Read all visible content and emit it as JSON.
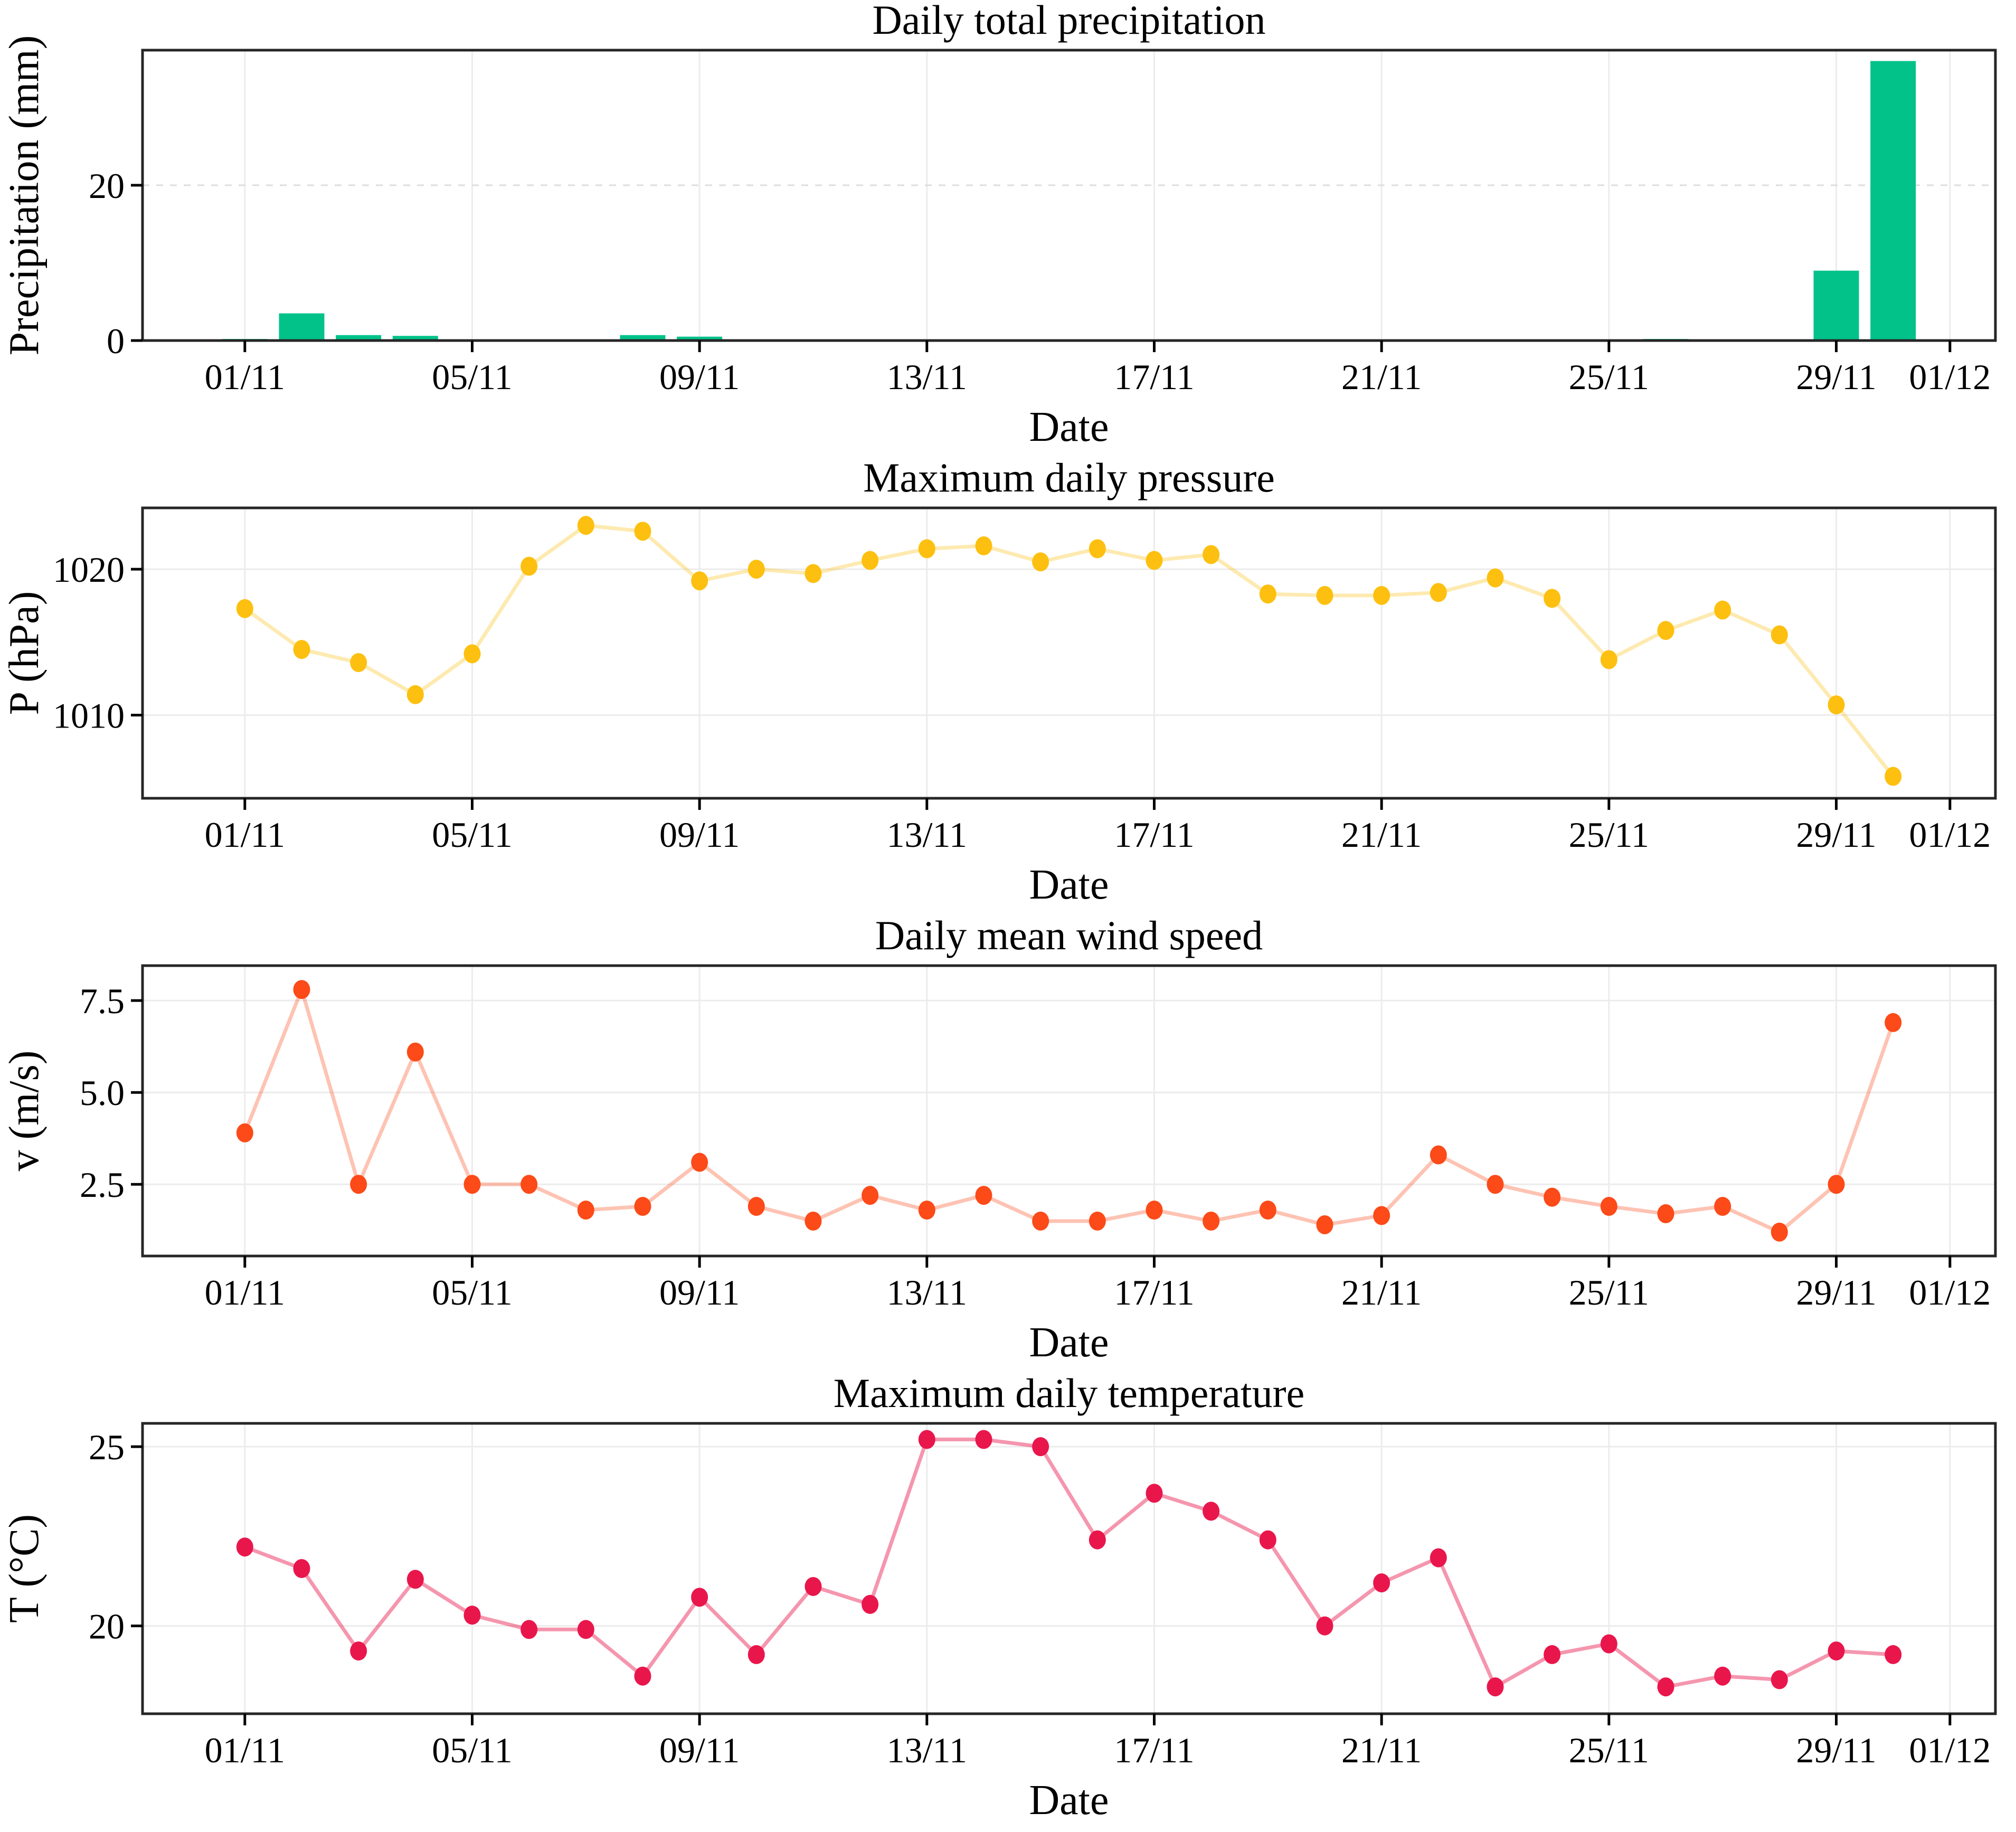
{
  "page": {
    "background": "#ffffff",
    "grid_color": "#ececec",
    "dashed_grid_color": "#dedede",
    "spine_color": "#262626",
    "tick_color": "#000000"
  },
  "x_axis": {
    "label": "Date",
    "xlim": [
      -0.8,
      31.8
    ],
    "tick_days": [
      1,
      5,
      9,
      13,
      17,
      21,
      25,
      29,
      31
    ],
    "tick_labels": [
      "01/11",
      "05/11",
      "09/11",
      "13/11",
      "17/11",
      "21/11",
      "25/11",
      "29/11",
      "01/12"
    ]
  },
  "chart_data": [
    {
      "type": "bar",
      "title": "Daily total precipitation",
      "ylabel": "Precipitation (mm)",
      "xlabel": "Date",
      "color": "#02c28a",
      "ylim": [
        0,
        37.4
      ],
      "yticks": [
        0,
        20
      ],
      "ytick_labels": [
        "0",
        "20"
      ],
      "grid_style": "dashed",
      "x": [
        1,
        2,
        3,
        4,
        5,
        6,
        7,
        8,
        9,
        10,
        11,
        12,
        13,
        14,
        15,
        16,
        17,
        18,
        19,
        20,
        21,
        22,
        23,
        24,
        25,
        26,
        27,
        28,
        29,
        30
      ],
      "values": [
        0.2,
        3.5,
        0.7,
        0.6,
        0,
        0,
        0,
        0.7,
        0.5,
        0,
        0,
        0,
        0,
        0,
        0,
        0,
        0,
        0,
        0,
        0.15,
        0,
        0,
        0,
        0,
        0,
        0.2,
        0,
        0,
        9.0,
        36.0
      ]
    },
    {
      "type": "line",
      "title": "Maximum daily pressure",
      "ylabel": "P (hPa)",
      "xlabel": "Date",
      "color": "#fdc010",
      "line_opacity": 0.33,
      "ylim": [
        1004.3,
        1024.2
      ],
      "yticks": [
        1010,
        1020
      ],
      "ytick_labels": [
        "1010",
        "1020"
      ],
      "grid_style": "solid",
      "x": [
        1,
        2,
        3,
        4,
        5,
        6,
        7,
        8,
        9,
        10,
        11,
        12,
        13,
        14,
        15,
        16,
        17,
        18,
        19,
        20,
        21,
        22,
        23,
        24,
        25,
        26,
        27,
        28,
        29,
        30
      ],
      "values": [
        1017.3,
        1014.5,
        1013.6,
        1011.4,
        1014.2,
        1020.2,
        1023.0,
        1022.6,
        1019.2,
        1020.0,
        1019.7,
        1020.6,
        1021.4,
        1021.6,
        1020.5,
        1021.4,
        1020.6,
        1021.0,
        1018.3,
        1018.2,
        1018.2,
        1018.4,
        1019.4,
        1018.0,
        1013.8,
        1015.8,
        1017.2,
        1015.5,
        1010.7,
        1005.8
      ]
    },
    {
      "type": "line",
      "title": "Daily mean wind speed",
      "ylabel": "v (m/s)",
      "xlabel": "Date",
      "color": "#fc4a18",
      "line_opacity": 0.33,
      "ylim": [
        0.55,
        8.45
      ],
      "yticks": [
        2.5,
        5.0,
        7.5
      ],
      "ytick_labels": [
        "2.5",
        "5.0",
        "7.5"
      ],
      "grid_style": "solid",
      "x": [
        1,
        2,
        3,
        4,
        5,
        6,
        7,
        8,
        9,
        10,
        11,
        12,
        13,
        14,
        15,
        16,
        17,
        18,
        19,
        20,
        21,
        22,
        23,
        24,
        25,
        26,
        27,
        28,
        29,
        30
      ],
      "values": [
        3.9,
        7.8,
        2.5,
        6.1,
        2.5,
        2.5,
        1.8,
        1.9,
        3.1,
        1.9,
        1.5,
        2.2,
        1.8,
        2.2,
        1.5,
        1.5,
        1.8,
        1.5,
        1.8,
        1.4,
        1.65,
        3.3,
        2.5,
        2.15,
        1.9,
        1.7,
        1.9,
        1.2,
        2.5,
        6.9
      ]
    },
    {
      "type": "line",
      "title": "Maximum daily temperature",
      "ylabel": "T (°C)",
      "xlabel": "Date",
      "color": "#e9164c",
      "line_opacity": 0.45,
      "ylim": [
        17.55,
        25.65
      ],
      "yticks": [
        20,
        25
      ],
      "ytick_labels": [
        "20",
        "25"
      ],
      "grid_style": "solid",
      "x": [
        1,
        2,
        3,
        4,
        5,
        6,
        7,
        8,
        9,
        10,
        11,
        12,
        13,
        14,
        15,
        16,
        17,
        18,
        19,
        20,
        21,
        22,
        23,
        24,
        25,
        26,
        27,
        28,
        29,
        30
      ],
      "values": [
        22.2,
        21.6,
        19.3,
        21.3,
        20.3,
        19.9,
        19.9,
        18.6,
        20.8,
        19.2,
        21.1,
        20.6,
        25.2,
        25.2,
        25.0,
        22.4,
        23.7,
        23.2,
        22.4,
        20.0,
        21.2,
        21.9,
        18.3,
        19.2,
        19.5,
        18.3,
        18.6,
        18.5,
        19.3,
        19.2
      ]
    }
  ]
}
